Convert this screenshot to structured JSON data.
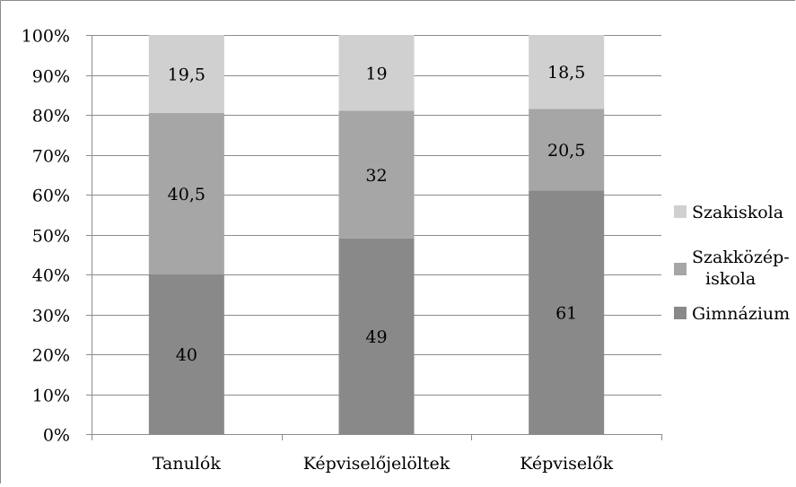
{
  "chart_data": {
    "type": "bar",
    "stacked": "percent",
    "categories": [
      "Tanulók",
      "Képviselőjelöltek",
      "Képviselők"
    ],
    "series": [
      {
        "name": "Gimnázium",
        "values": [
          40,
          49,
          61
        ],
        "color": "#898989"
      },
      {
        "name": "Szakközép-iskola",
        "name_lines": [
          "Szakközép-",
          "iskola"
        ],
        "values": [
          40.5,
          32,
          20.5
        ],
        "color": "#a6a6a6"
      },
      {
        "name": "Szakiskola",
        "values": [
          19.5,
          19,
          18.5
        ],
        "color": "#d0d0d0"
      }
    ],
    "data_labels": [
      [
        "40",
        "49",
        "61"
      ],
      [
        "40,5",
        "32",
        "20,5"
      ],
      [
        "19,5",
        "19",
        "18,5"
      ]
    ],
    "y_ticks": [
      "0%",
      "10%",
      "20%",
      "30%",
      "40%",
      "50%",
      "60%",
      "70%",
      "80%",
      "90%",
      "100%"
    ],
    "ylim": [
      0,
      100
    ],
    "grid": true,
    "legend_position": "right",
    "title": "",
    "xlabel": "",
    "ylabel": ""
  }
}
